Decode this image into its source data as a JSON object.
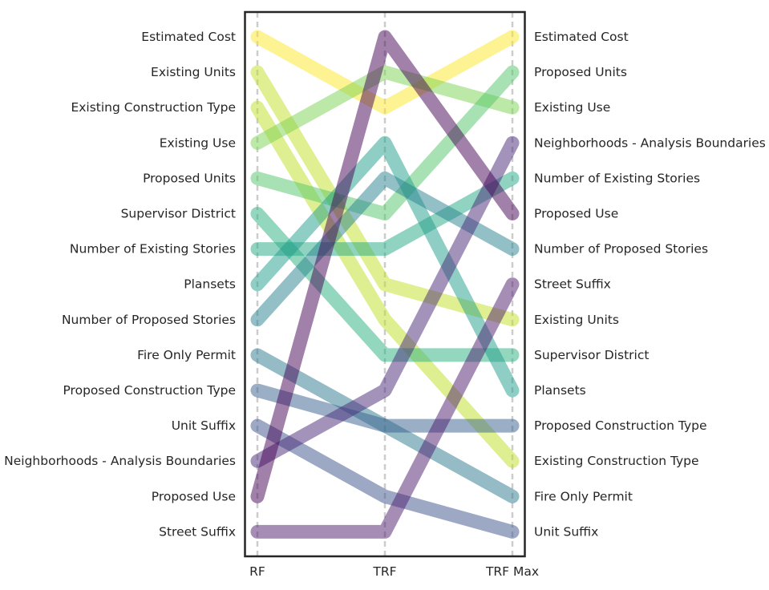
{
  "chart_data": {
    "type": "bump",
    "title": "",
    "xlabel": "",
    "ylabel": "",
    "x": [
      "RF",
      "TRF",
      "TRF Max"
    ],
    "ranks_top_to_bottom": 15,
    "series": [
      {
        "name": "Estimated Cost",
        "color": "#fde725",
        "ranks": [
          1,
          3,
          1
        ]
      },
      {
        "name": "Existing Units",
        "color": "#c2df23",
        "ranks": [
          2,
          8,
          9
        ]
      },
      {
        "name": "Existing Construction Type",
        "color": "#bddf26",
        "ranks": [
          3,
          9,
          13
        ]
      },
      {
        "name": "Existing Use",
        "color": "#7ad151",
        "ranks": [
          4,
          2,
          3
        ]
      },
      {
        "name": "Proposed Units",
        "color": "#52c569",
        "ranks": [
          5,
          6,
          2
        ]
      },
      {
        "name": "Supervisor District",
        "color": "#2ab07f",
        "ranks": [
          6,
          10,
          10
        ]
      },
      {
        "name": "Number of Existing Stories",
        "color": "#22a884",
        "ranks": [
          7,
          7,
          5
        ]
      },
      {
        "name": "Plansets",
        "color": "#1f9e89",
        "ranks": [
          8,
          4,
          11
        ]
      },
      {
        "name": "Number of Proposed Stories",
        "color": "#26828e",
        "ranks": [
          9,
          5,
          7
        ]
      },
      {
        "name": "Fire Only Permit",
        "color": "#2a788e",
        "ranks": [
          10,
          12,
          14
        ]
      },
      {
        "name": "Proposed Construction Type",
        "color": "#355f8d",
        "ranks": [
          11,
          12,
          12
        ]
      },
      {
        "name": "Unit Suffix",
        "color": "#3b528b",
        "ranks": [
          12,
          14,
          15
        ]
      },
      {
        "name": "Neighborhoods - Analysis Boundaries",
        "color": "#482878",
        "ranks": [
          13,
          11,
          4
        ]
      },
      {
        "name": "Proposed Use",
        "color": "#440154",
        "ranks": [
          14,
          1,
          6
        ]
      },
      {
        "name": "Street Suffix",
        "color": "#4b1b6b",
        "ranks": [
          15,
          15,
          8
        ]
      }
    ],
    "left_labels": [
      "Estimated Cost",
      "Existing Units",
      "Existing Construction Type",
      "Existing Use",
      "Proposed Units",
      "Supervisor District",
      "Number of Existing Stories",
      "Plansets",
      "Number of Proposed Stories",
      "Fire Only Permit",
      "Proposed Construction Type",
      "Unit Suffix",
      "Neighborhoods - Analysis Boundaries",
      "Proposed Use",
      "Street Suffix"
    ],
    "right_labels": [
      "Estimated Cost",
      "Proposed Units",
      "Existing Use",
      "Neighborhoods - Analysis Boundaries",
      "Number of Existing Stories",
      "Proposed Use",
      "Number of Proposed Stories",
      "Street Suffix",
      "Existing Units",
      "Supervisor District",
      "Plansets",
      "Proposed Construction Type",
      "Existing Construction Type",
      "Fire Only Permit",
      "Unit Suffix"
    ],
    "grid": false,
    "vertical_guides": "dashed"
  }
}
